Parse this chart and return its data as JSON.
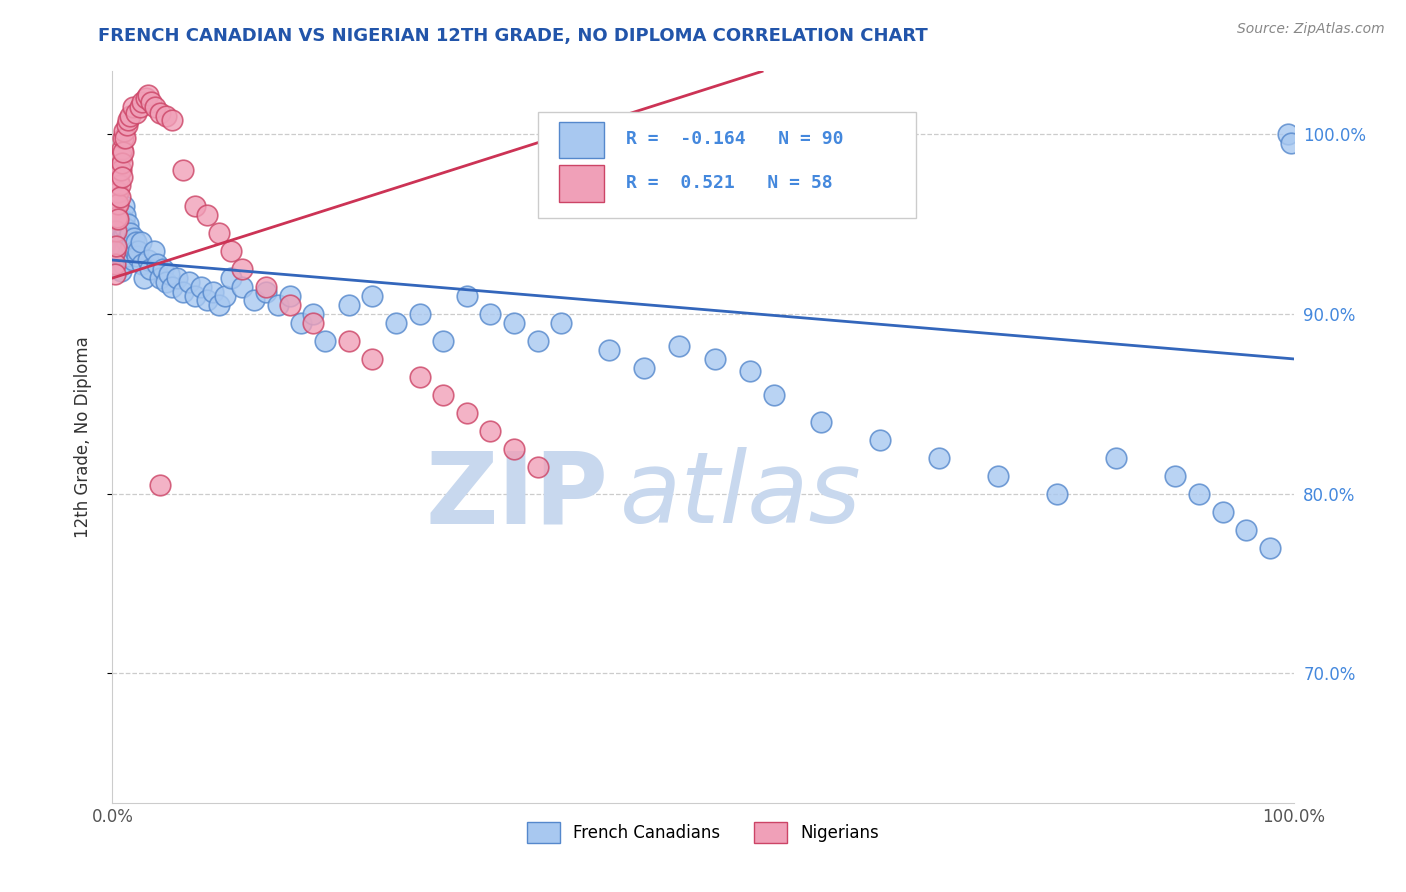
{
  "title": "FRENCH CANADIAN VS NIGERIAN 12TH GRADE, NO DIPLOMA CORRELATION CHART",
  "source_text": "Source: ZipAtlas.com",
  "ylabel": "12th Grade, No Diploma",
  "x_min": 0.0,
  "x_max": 1.0,
  "y_min": 0.628,
  "y_max": 1.035,
  "right_yticks": [
    0.7,
    0.8,
    0.9,
    1.0
  ],
  "right_yticklabels": [
    "70.0%",
    "80.0%",
    "90.0%",
    "100.0%"
  ],
  "blue_color": "#a8c8f0",
  "pink_color": "#f0a0b8",
  "blue_edge_color": "#5588cc",
  "pink_edge_color": "#cc4466",
  "blue_line_color": "#3366bb",
  "pink_line_color": "#cc3355",
  "legend_blue_label": "French Canadians",
  "legend_pink_label": "Nigerians",
  "R_blue": -0.164,
  "N_blue": 90,
  "R_pink": 0.521,
  "N_pink": 58,
  "watermark_zip": "ZIP",
  "watermark_atlas": "atlas",
  "watermark_color": "#c8d8ee",
  "blue_trend_x0": 0.0,
  "blue_trend_y0": 0.93,
  "blue_trend_x1": 1.0,
  "blue_trend_y1": 0.875,
  "pink_trend_x0": 0.0,
  "pink_trend_y0": 0.92,
  "pink_trend_x1": 0.55,
  "pink_trend_y1": 1.035,
  "blue_scatter_x": [
    0.005,
    0.005,
    0.005,
    0.005,
    0.007,
    0.007,
    0.007,
    0.007,
    0.008,
    0.008,
    0.009,
    0.009,
    0.01,
    0.01,
    0.01,
    0.01,
    0.011,
    0.011,
    0.012,
    0.012,
    0.013,
    0.013,
    0.014,
    0.015,
    0.016,
    0.017,
    0.018,
    0.019,
    0.02,
    0.021,
    0.022,
    0.024,
    0.025,
    0.027,
    0.03,
    0.032,
    0.035,
    0.038,
    0.04,
    0.043,
    0.045,
    0.048,
    0.05,
    0.055,
    0.06,
    0.065,
    0.07,
    0.075,
    0.08,
    0.085,
    0.09,
    0.095,
    0.1,
    0.11,
    0.12,
    0.13,
    0.14,
    0.15,
    0.16,
    0.17,
    0.18,
    0.2,
    0.22,
    0.24,
    0.26,
    0.28,
    0.3,
    0.32,
    0.34,
    0.36,
    0.38,
    0.42,
    0.45,
    0.48,
    0.51,
    0.54,
    0.56,
    0.6,
    0.65,
    0.7,
    0.75,
    0.8,
    0.85,
    0.9,
    0.92,
    0.94,
    0.96,
    0.98,
    0.995,
    0.998
  ],
  "blue_scatter_y": [
    0.94,
    0.935,
    0.928,
    0.925,
    0.945,
    0.938,
    0.932,
    0.924,
    0.95,
    0.943,
    0.936,
    0.928,
    0.96,
    0.952,
    0.944,
    0.935,
    0.955,
    0.948,
    0.94,
    0.932,
    0.95,
    0.942,
    0.935,
    0.945,
    0.938,
    0.93,
    0.942,
    0.935,
    0.94,
    0.932,
    0.935,
    0.94,
    0.928,
    0.92,
    0.93,
    0.925,
    0.935,
    0.928,
    0.92,
    0.925,
    0.918,
    0.922,
    0.915,
    0.92,
    0.912,
    0.918,
    0.91,
    0.915,
    0.908,
    0.912,
    0.905,
    0.91,
    0.92,
    0.915,
    0.908,
    0.912,
    0.905,
    0.91,
    0.895,
    0.9,
    0.885,
    0.905,
    0.91,
    0.895,
    0.9,
    0.885,
    0.91,
    0.9,
    0.895,
    0.885,
    0.895,
    0.88,
    0.87,
    0.882,
    0.875,
    0.868,
    0.855,
    0.84,
    0.83,
    0.82,
    0.81,
    0.8,
    0.82,
    0.81,
    0.8,
    0.79,
    0.78,
    0.77,
    1.0,
    0.995
  ],
  "pink_scatter_x": [
    0.002,
    0.002,
    0.002,
    0.003,
    0.003,
    0.003,
    0.003,
    0.004,
    0.004,
    0.004,
    0.005,
    0.005,
    0.005,
    0.005,
    0.006,
    0.006,
    0.006,
    0.007,
    0.007,
    0.008,
    0.008,
    0.008,
    0.009,
    0.009,
    0.01,
    0.011,
    0.012,
    0.013,
    0.015,
    0.017,
    0.02,
    0.023,
    0.025,
    0.028,
    0.03,
    0.033,
    0.036,
    0.04,
    0.045,
    0.05,
    0.06,
    0.07,
    0.08,
    0.09,
    0.1,
    0.11,
    0.13,
    0.15,
    0.17,
    0.2,
    0.22,
    0.26,
    0.28,
    0.3,
    0.32,
    0.34,
    0.36,
    0.04
  ],
  "pink_scatter_y": [
    0.935,
    0.928,
    0.922,
    0.96,
    0.953,
    0.946,
    0.938,
    0.968,
    0.961,
    0.954,
    0.975,
    0.968,
    0.961,
    0.953,
    0.98,
    0.972,
    0.965,
    0.988,
    0.98,
    0.992,
    0.984,
    0.976,
    0.998,
    0.99,
    1.002,
    0.998,
    1.005,
    1.008,
    1.01,
    1.015,
    1.012,
    1.015,
    1.018,
    1.02,
    1.022,
    1.018,
    1.015,
    1.012,
    1.01,
    1.008,
    0.98,
    0.96,
    0.955,
    0.945,
    0.935,
    0.925,
    0.915,
    0.905,
    0.895,
    0.885,
    0.875,
    0.865,
    0.855,
    0.845,
    0.835,
    0.825,
    0.815,
    0.805
  ]
}
